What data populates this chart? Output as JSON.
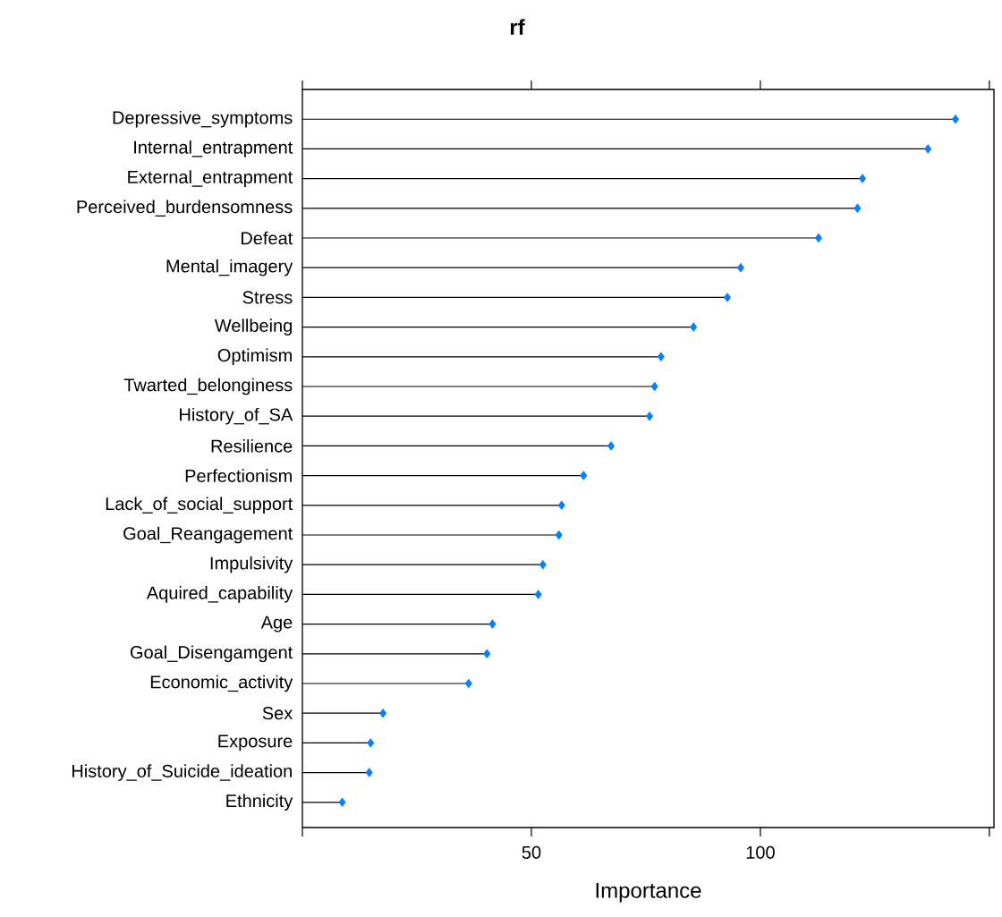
{
  "chart_data": {
    "type": "lollipop",
    "title": "rf",
    "xlabel": "Importance",
    "orientation": "horizontal",
    "categories": [
      "Depressive_symptoms",
      "Internal_entrapment",
      "External_entrapment",
      "Perceived_burdensomness",
      "Defeat",
      "Mental_imagery",
      "Stress",
      "Wellbeing",
      "Optimism",
      "Twarted_belonginess",
      "History_of_SA",
      "Resilience",
      "Perfectionism",
      "Lack_of_social_support",
      "Goal_Reangagement",
      "Impulsivity",
      "Aquired_capability",
      "Age",
      "Goal_Disengamgent",
      "Economic_activity",
      "Sex",
      "Exposure",
      "History_of_Suicide_ideation",
      "Ethnicity"
    ],
    "values": [
      142.6,
      136.6,
      122.3,
      121.2,
      112.7,
      95.7,
      92.8,
      85.4,
      78.3,
      76.9,
      75.8,
      67.4,
      61.4,
      56.6,
      56.0,
      52.5,
      51.5,
      41.5,
      40.3,
      36.3,
      17.6,
      14.9,
      14.6,
      8.7
    ],
    "color": "#0080ff",
    "marker": "diamond",
    "grid": false,
    "xlim": [
      0,
      151
    ],
    "xticks": [
      {
        "value": 0,
        "label": null
      },
      50,
      100,
      {
        "value": 150,
        "label": null
      }
    ]
  }
}
